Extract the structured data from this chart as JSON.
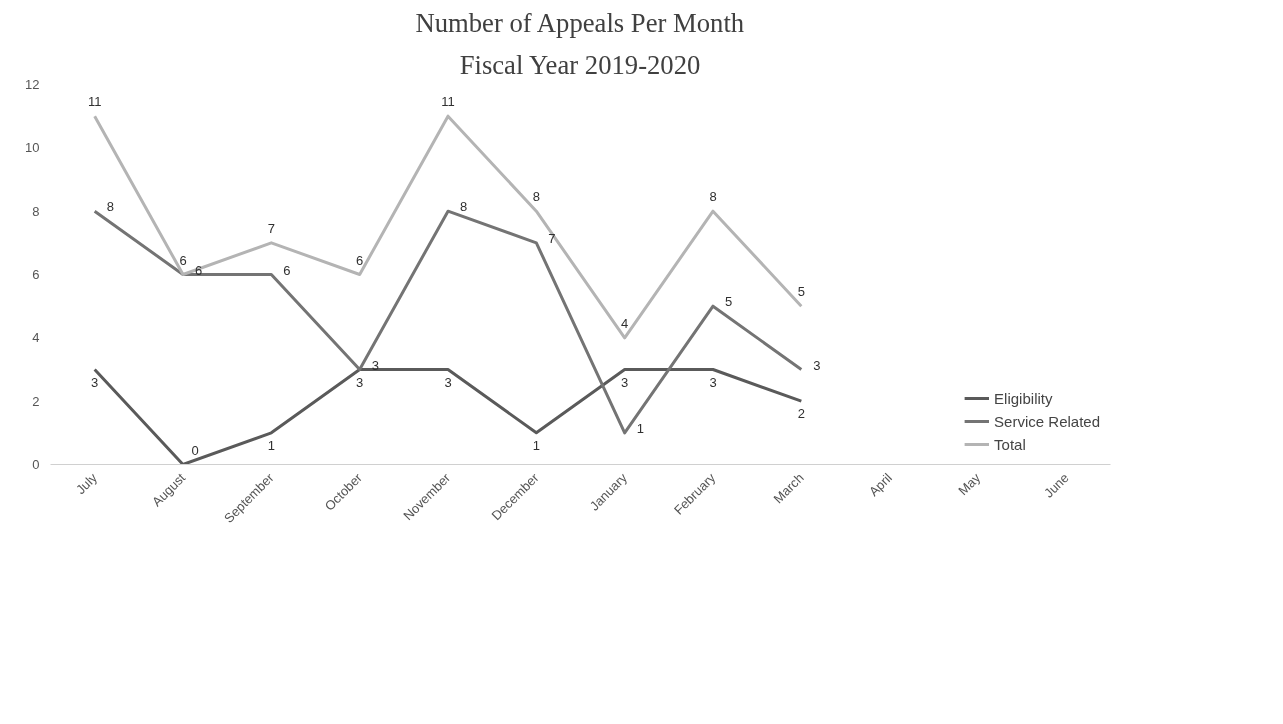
{
  "chart_data": {
    "type": "line",
    "title": "Number of Appeals Per Month",
    "subtitle": "Fiscal Year 2019-2020",
    "categories": [
      "July",
      "August",
      "September",
      "October",
      "November",
      "December",
      "January",
      "February",
      "March",
      "April",
      "May",
      "June"
    ],
    "series": [
      {
        "name": "Eligibility",
        "color": "#5a5a5a",
        "values": [
          3,
          0,
          1,
          3,
          3,
          1,
          3,
          3,
          2,
          null,
          null,
          null
        ]
      },
      {
        "name": "Service Related",
        "color": "#747474",
        "values": [
          8,
          6,
          6,
          3,
          8,
          7,
          1,
          5,
          3,
          null,
          null,
          null
        ]
      },
      {
        "name": "Total",
        "color": "#b4b4b4",
        "values": [
          11,
          6,
          7,
          6,
          11,
          8,
          4,
          8,
          5,
          null,
          null,
          null
        ]
      }
    ],
    "ylim": [
      0,
      12
    ],
    "yticks": [
      0,
      2,
      4,
      6,
      8,
      10,
      12
    ],
    "grid": false,
    "legend": "bottom right",
    "marker": "none",
    "line_style": "solid",
    "data_labels": true
  }
}
